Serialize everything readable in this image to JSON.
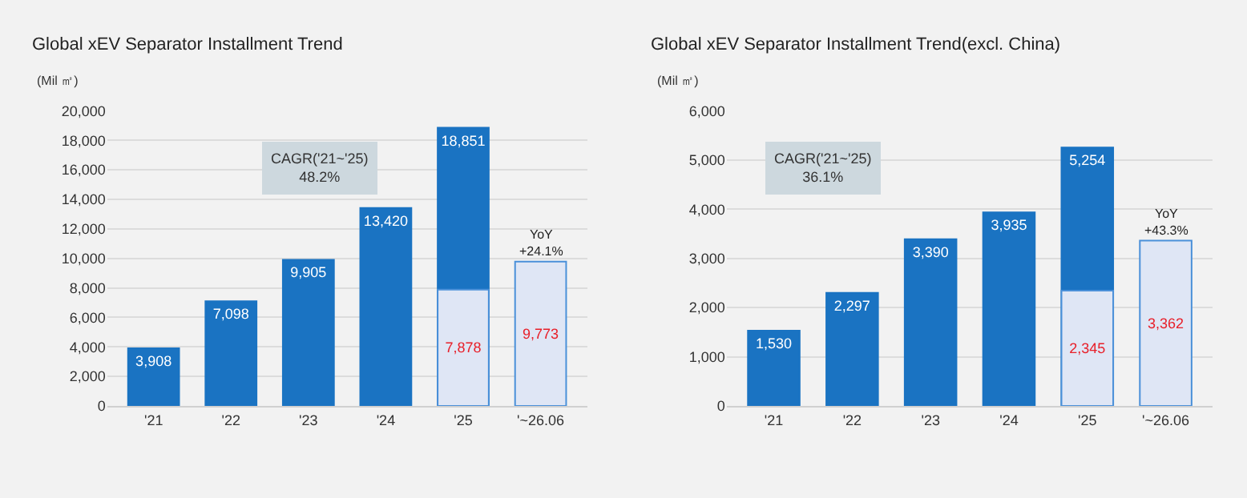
{
  "chart_data": [
    {
      "type": "bar",
      "title": "Global xEV Separator Installment Trend",
      "ylabel": "(Mil ㎡)",
      "categories": [
        "'21",
        "'22",
        "'23",
        "'24",
        "'25",
        "'~26.06"
      ],
      "grid": "y",
      "ylim": [
        0,
        20000
      ],
      "yticks": [
        {
          "value": 0,
          "label": "0"
        },
        {
          "value": 2000,
          "label": "2,000"
        },
        {
          "value": 4000,
          "label": "4,000"
        },
        {
          "value": 6000,
          "label": "6,000"
        },
        {
          "value": 8000,
          "label": "8,000"
        },
        {
          "value": 10000,
          "label": "10,000"
        },
        {
          "value": 12000,
          "label": "12,000"
        },
        {
          "value": 14000,
          "label": "14,000"
        },
        {
          "value": 16000,
          "label": "16,000"
        },
        {
          "value": 18000,
          "label": "18,000"
        },
        {
          "value": 20000,
          "label": "20,000"
        }
      ],
      "series": [
        {
          "color": "#1a73c2",
          "values": [
            3908,
            7098,
            9905,
            13420,
            18851,
            null
          ],
          "value_labels": [
            "3,908",
            "7,098",
            "9,905",
            "13,420",
            "18,851",
            null
          ]
        },
        {
          "color": "#dfe6f5",
          "values": [
            null,
            null,
            null,
            null,
            7878,
            9773
          ],
          "value_labels": [
            null,
            null,
            null,
            null,
            "7,878",
            "9,773"
          ]
        }
      ],
      "annotations": [
        "CAGR('21~'25)\n48.2%",
        {
          "text": "YoY\n+24.1%",
          "x": "'~26.06",
          "y": 9773
        }
      ]
    },
    {
      "type": "bar",
      "title": "Global xEV Separator Installment Trend(excl. China)",
      "ylabel": "(Mil ㎡)",
      "categories": [
        "'21",
        "'22",
        "'23",
        "'24",
        "'25",
        "'~26.06"
      ],
      "grid": "y",
      "ylim": [
        0,
        6000
      ],
      "yticks": [
        {
          "value": 0,
          "label": "0"
        },
        {
          "value": 1000,
          "label": "1,000"
        },
        {
          "value": 2000,
          "label": "2,000"
        },
        {
          "value": 3000,
          "label": "3,000"
        },
        {
          "value": 4000,
          "label": "4,000"
        },
        {
          "value": 5000,
          "label": "5,000"
        },
        {
          "value": 6000,
          "label": "6,000"
        }
      ],
      "series": [
        {
          "color": "#1a73c2",
          "values": [
            1530,
            2297,
            3390,
            3935,
            5254,
            null
          ],
          "value_labels": [
            "1,530",
            "2,297",
            "3,390",
            "3,935",
            "5,254",
            null
          ]
        },
        {
          "color": "#dfe6f5",
          "values": [
            null,
            null,
            null,
            null,
            2345,
            3362
          ],
          "value_labels": [
            null,
            null,
            null,
            null,
            "2,345",
            "3,362"
          ]
        }
      ],
      "annotations": [
        "CAGR('21~'25)\n36.1%",
        {
          "text": "YoY\n+43.3%",
          "x": "'~26.06",
          "y": 3362
        }
      ]
    }
  ]
}
